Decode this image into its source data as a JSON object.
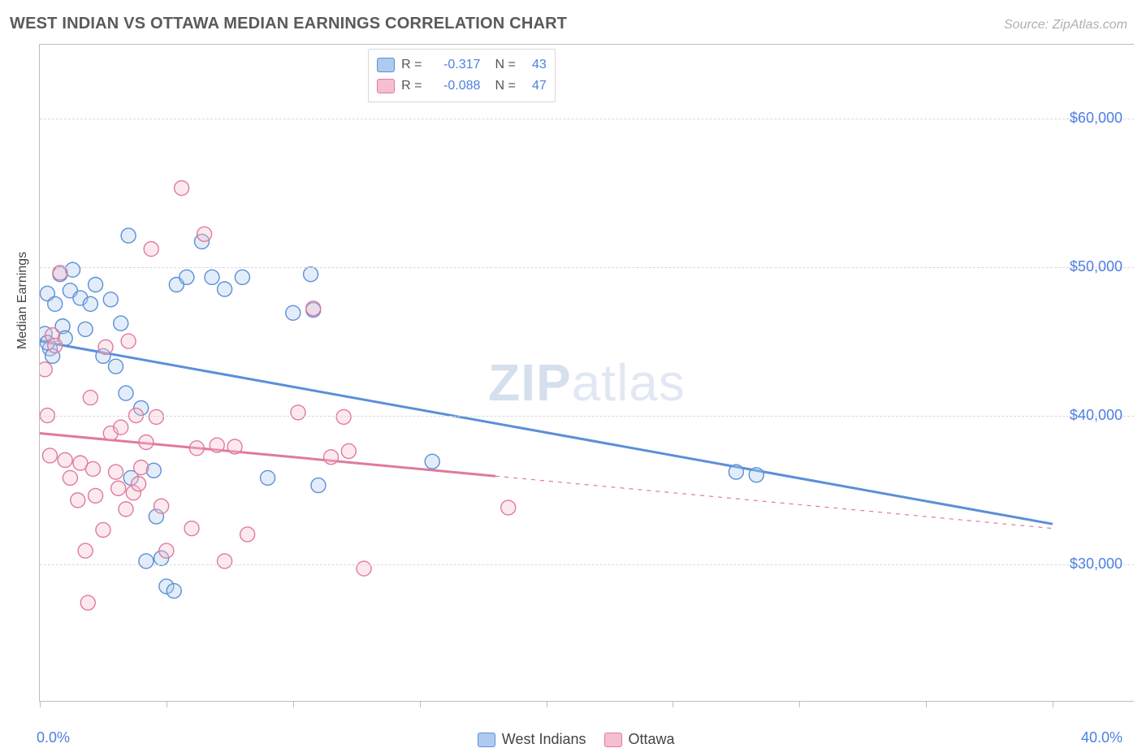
{
  "title": "WEST INDIAN VS OTTAWA MEDIAN EARNINGS CORRELATION CHART",
  "source_label": "Source: ZipAtlas.com",
  "ylabel": "Median Earnings",
  "watermark": {
    "bold": "ZIP",
    "light": "atlas"
  },
  "chart": {
    "type": "scatter",
    "background_color": "#ffffff",
    "grid_color": "#d9d9d9",
    "axis_color": "#bdbdbd",
    "value_text_color": "#4e7fe1",
    "label_text_color": "#444444",
    "title_text_color": "#5a5a5a",
    "title_fontsize": 20,
    "label_fontsize": 18,
    "marker_radius": 9,
    "marker_fill_opacity": 0.35,
    "marker_stroke_width": 1.4,
    "trend_line_width": 3,
    "xlim": [
      0.0,
      40.0
    ],
    "ylim": [
      22000,
      65000
    ],
    "xtick_positions": [
      0,
      5,
      10,
      15,
      20,
      25,
      30,
      35,
      40
    ],
    "xtick_labels_shown": {
      "0": "0.0%",
      "40": "40.0%"
    },
    "ytick_positions": [
      30000,
      40000,
      50000,
      60000
    ],
    "ytick_labels": {
      "30000": "$30,000",
      "40000": "$40,000",
      "50000": "$50,000",
      "60000": "$60,000"
    }
  },
  "series": {
    "west_indians": {
      "label": "West Indians",
      "fill": "#aecbef",
      "stroke": "#5b8fd8",
      "R": "-0.317",
      "N": "43",
      "trend": {
        "y_at_xmin": 45000,
        "y_at_xmax": 32700,
        "solid_xmax": 40.0
      },
      "points": [
        [
          0.2,
          45500
        ],
        [
          0.3,
          48200
        ],
        [
          0.4,
          44500
        ],
        [
          0.6,
          47500
        ],
        [
          0.8,
          49500
        ],
        [
          0.9,
          46000
        ],
        [
          0.5,
          44000
        ],
        [
          1.0,
          45200
        ],
        [
          1.2,
          48400
        ],
        [
          1.3,
          49800
        ],
        [
          1.6,
          47900
        ],
        [
          1.8,
          45800
        ],
        [
          2.0,
          47500
        ],
        [
          2.2,
          48800
        ],
        [
          2.5,
          44000
        ],
        [
          2.8,
          47800
        ],
        [
          3.0,
          43300
        ],
        [
          3.2,
          46200
        ],
        [
          3.4,
          41500
        ],
        [
          3.5,
          52100
        ],
        [
          3.6,
          35800
        ],
        [
          4.0,
          40500
        ],
        [
          4.2,
          30200
        ],
        [
          4.5,
          36300
        ],
        [
          4.6,
          33200
        ],
        [
          5.0,
          28500
        ],
        [
          5.3,
          28200
        ],
        [
          5.4,
          48800
        ],
        [
          5.8,
          49300
        ],
        [
          6.4,
          51700
        ],
        [
          6.8,
          49300
        ],
        [
          7.3,
          48500
        ],
        [
          8.0,
          49300
        ],
        [
          9.0,
          35800
        ],
        [
          10.0,
          46900
        ],
        [
          10.7,
          49500
        ],
        [
          10.8,
          47100
        ],
        [
          11.0,
          35300
        ],
        [
          15.5,
          36900
        ],
        [
          27.5,
          36200
        ],
        [
          28.3,
          36000
        ],
        [
          4.8,
          30400
        ],
        [
          0.3,
          44900
        ]
      ]
    },
    "ottawa": {
      "label": "Ottawa",
      "fill": "#f6bfcf",
      "stroke": "#e07a9d",
      "R": "-0.088",
      "N": "47",
      "trend": {
        "y_at_xmin": 38800,
        "y_at_xmax": 32400,
        "solid_xmax": 18.0
      },
      "points": [
        [
          0.2,
          43100
        ],
        [
          0.3,
          40000
        ],
        [
          0.4,
          37300
        ],
        [
          0.5,
          45400
        ],
        [
          0.6,
          44700
        ],
        [
          0.8,
          49600
        ],
        [
          1.0,
          37000
        ],
        [
          1.2,
          35800
        ],
        [
          1.5,
          34300
        ],
        [
          1.6,
          36800
        ],
        [
          1.8,
          30900
        ],
        [
          1.9,
          27400
        ],
        [
          2.0,
          41200
        ],
        [
          2.1,
          36400
        ],
        [
          2.2,
          34600
        ],
        [
          2.5,
          32300
        ],
        [
          2.6,
          44600
        ],
        [
          2.8,
          38800
        ],
        [
          3.0,
          36200
        ],
        [
          3.1,
          35100
        ],
        [
          3.2,
          39200
        ],
        [
          3.4,
          33700
        ],
        [
          3.5,
          45000
        ],
        [
          3.7,
          34800
        ],
        [
          3.8,
          40000
        ],
        [
          3.9,
          35400
        ],
        [
          4.0,
          36500
        ],
        [
          4.2,
          38200
        ],
        [
          4.4,
          51200
        ],
        [
          4.6,
          39900
        ],
        [
          4.8,
          33900
        ],
        [
          5.0,
          30900
        ],
        [
          5.6,
          55300
        ],
        [
          6.0,
          32400
        ],
        [
          6.2,
          37800
        ],
        [
          6.5,
          52200
        ],
        [
          7.0,
          38000
        ],
        [
          7.3,
          30200
        ],
        [
          7.7,
          37900
        ],
        [
          8.2,
          32000
        ],
        [
          10.2,
          40200
        ],
        [
          10.8,
          47200
        ],
        [
          11.5,
          37200
        ],
        [
          12.0,
          39900
        ],
        [
          12.2,
          37600
        ],
        [
          12.8,
          29700
        ],
        [
          18.5,
          33800
        ]
      ]
    }
  },
  "legend_top": {
    "R_label": "R =",
    "N_label": "N ="
  }
}
